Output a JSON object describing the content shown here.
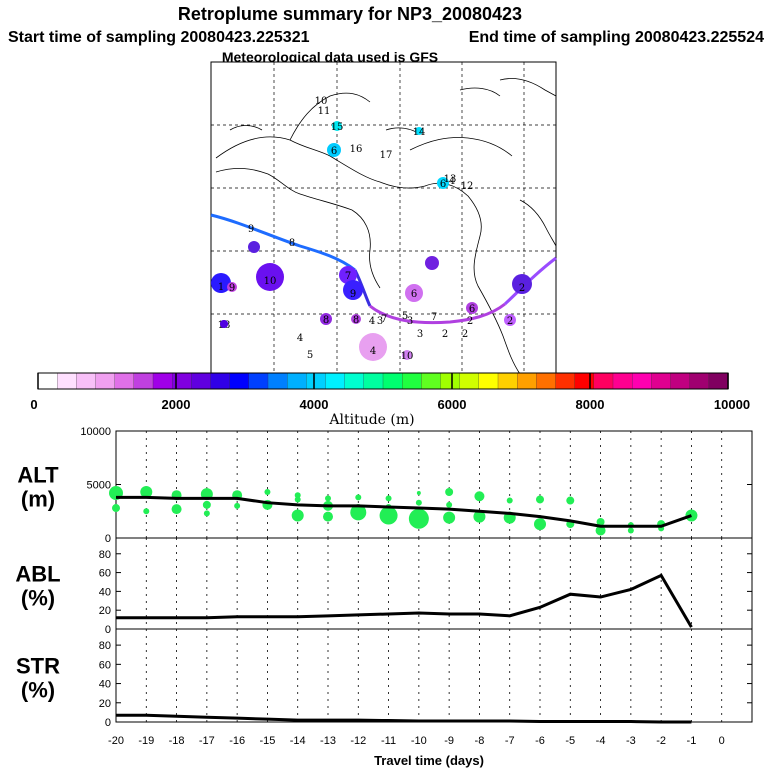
{
  "title": "Retroplume summary for NP3_20080423",
  "start_label": "Start time of sampling 20080423.225321",
  "end_label": "End time of sampling 20080423.225524",
  "met_label": "Meteorological data used is GFS",
  "colorbar": {
    "xlabel": "Altitude (m)",
    "ticks": [
      "0",
      "2000",
      "4000",
      "6000",
      "8000",
      "10000"
    ],
    "min": 0,
    "max": 10000,
    "colors": [
      "#ffffff",
      "#ffe0ff",
      "#f8c0f8",
      "#f0a0f0",
      "#e070e8",
      "#c040e0",
      "#a000e8",
      "#8000e0",
      "#6000e0",
      "#3000e8",
      "#0000ff",
      "#0040ff",
      "#0080ff",
      "#00b0ff",
      "#00d0ff",
      "#00f0ff",
      "#00ffd0",
      "#00ffa0",
      "#00ff70",
      "#20ff40",
      "#60ff20",
      "#a0ff00",
      "#d0ff00",
      "#ffff00",
      "#ffd000",
      "#ffa000",
      "#ff7000",
      "#ff3000",
      "#ff0000",
      "#ff0060",
      "#ff0090",
      "#ff00b0",
      "#e00090",
      "#c00080",
      "#a00070",
      "#800060"
    ]
  },
  "map_labels": [
    "1",
    "2",
    "2",
    "2",
    "2",
    "2",
    "3",
    "3",
    "3",
    "4",
    "4",
    "4",
    "4",
    "5",
    "5",
    "6",
    "6",
    "6",
    "6",
    "7",
    "7",
    "7",
    "8",
    "8",
    "8",
    "9",
    "9",
    "9",
    "10",
    "10",
    "10",
    "11",
    "12",
    "13",
    "14",
    "15",
    "16",
    "17",
    "18"
  ],
  "chart_data": [
    {
      "type": "scatter",
      "name": "ALT",
      "title": "ALT",
      "ylabel_unit": "(m)",
      "ylim": [
        0,
        10000
      ],
      "yticks": [
        "10000",
        "5000",
        "0"
      ],
      "mean_line": {
        "x": [
          -20,
          -19,
          -18,
          -17,
          -16,
          -15,
          -14,
          -13,
          -12,
          -11,
          -10,
          -9,
          -8,
          -7,
          -6,
          -5,
          -4,
          -3,
          -2,
          -1
        ],
        "y": [
          3800,
          3800,
          3700,
          3700,
          3700,
          3300,
          3100,
          3000,
          3000,
          2900,
          2800,
          2700,
          2500,
          2300,
          2000,
          1600,
          1100,
          1100,
          1100,
          2100
        ]
      },
      "points": [
        [
          -20,
          4200,
          7
        ],
        [
          -20,
          2800,
          4
        ],
        [
          -19,
          4300,
          6
        ],
        [
          -19,
          2500,
          3
        ],
        [
          -18,
          4000,
          5
        ],
        [
          -18,
          2700,
          5
        ],
        [
          -17,
          4100,
          6
        ],
        [
          -17,
          3100,
          4
        ],
        [
          -17,
          2300,
          3
        ],
        [
          -16,
          4000,
          5
        ],
        [
          -16,
          3000,
          3
        ],
        [
          -15,
          3100,
          5
        ],
        [
          -15,
          4300,
          3
        ],
        [
          -14,
          4000,
          3
        ],
        [
          -14,
          3600,
          3
        ],
        [
          -14,
          2100,
          6
        ],
        [
          -13,
          3700,
          3
        ],
        [
          -13,
          3000,
          5
        ],
        [
          -13,
          2000,
          5
        ],
        [
          -12,
          3800,
          3
        ],
        [
          -12,
          2800,
          4
        ],
        [
          -12,
          2400,
          8
        ],
        [
          -11,
          3700,
          3
        ],
        [
          -11,
          2900,
          3
        ],
        [
          -11,
          2100,
          9
        ],
        [
          -10,
          4200,
          2
        ],
        [
          -10,
          3300,
          3
        ],
        [
          -10,
          1800,
          10
        ],
        [
          -9,
          4300,
          4
        ],
        [
          -9,
          3100,
          3
        ],
        [
          -9,
          1900,
          6
        ],
        [
          -8,
          3900,
          5
        ],
        [
          -8,
          2000,
          6
        ],
        [
          -7,
          3500,
          3
        ],
        [
          -7,
          1900,
          6
        ],
        [
          -6,
          3600,
          4
        ],
        [
          -6,
          1300,
          6
        ],
        [
          -5,
          3500,
          4
        ],
        [
          -5,
          1300,
          4
        ],
        [
          -4,
          1500,
          4
        ],
        [
          -4,
          700,
          5
        ],
        [
          -3,
          1200,
          3
        ],
        [
          -3,
          700,
          3
        ],
        [
          -2,
          1300,
          4
        ],
        [
          -2,
          900,
          3
        ],
        [
          -1,
          2100,
          6
        ]
      ]
    },
    {
      "type": "line",
      "name": "ABL",
      "title": "ABL",
      "ylabel_unit": "(%)",
      "ylim": [
        0,
        90
      ],
      "yticks": [
        "80",
        "60",
        "40",
        "20",
        "0"
      ],
      "x": [
        -20,
        -19,
        -18,
        -17,
        -16,
        -15,
        -14,
        -13,
        -12,
        -11,
        -10,
        -9,
        -8,
        -7,
        -6,
        -5,
        -4,
        -3,
        -2,
        -1
      ],
      "y": [
        12,
        12,
        12,
        12,
        13,
        13,
        13,
        14,
        15,
        16,
        17,
        16,
        16,
        14,
        23,
        37,
        34,
        42,
        57,
        2
      ]
    },
    {
      "type": "line",
      "name": "STR",
      "title": "STR",
      "ylabel_unit": "(%)",
      "ylim": [
        0,
        90
      ],
      "yticks": [
        "80",
        "60",
        "40",
        "20",
        "0"
      ],
      "x": [
        -20,
        -19,
        -18,
        -17,
        -16,
        -15,
        -14,
        -13,
        -12,
        -11,
        -10,
        -9,
        -8,
        -7,
        -6,
        -5,
        -4,
        -3,
        -2,
        -1
      ],
      "y": [
        7,
        7,
        6,
        5,
        4,
        3,
        2,
        2,
        2,
        1.5,
        1,
        1,
        1,
        1,
        0.5,
        0.5,
        0.5,
        0.5,
        0,
        0
      ],
      "xlabel": "Travel time (days)",
      "xticks": [
        "-20",
        "-19",
        "-18",
        "-17",
        "-16",
        "-15",
        "-14",
        "-13",
        "-12",
        "-11",
        "-10",
        "-9",
        "-8",
        "-7",
        "-6",
        "-5",
        "-4",
        "-3",
        "-2",
        "-1",
        "0"
      ]
    }
  ]
}
